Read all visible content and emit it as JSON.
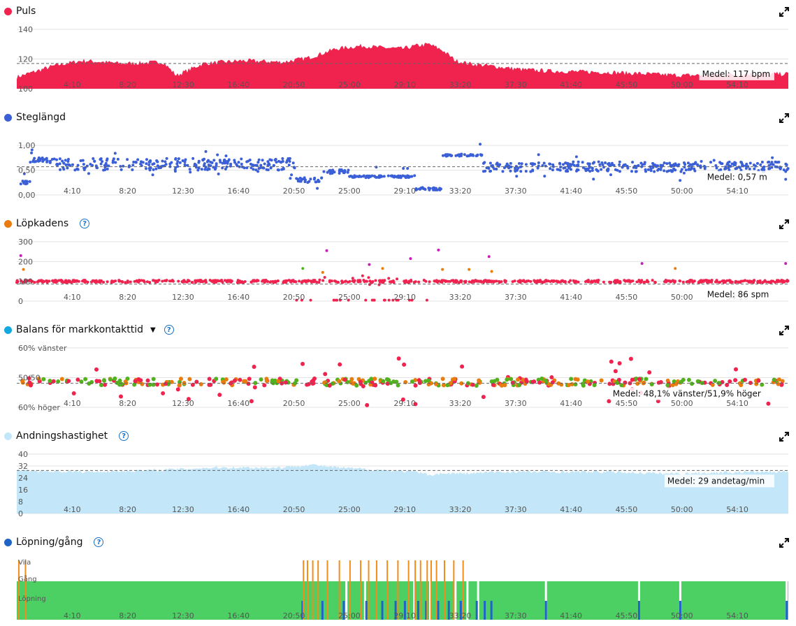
{
  "x_ticks": [
    "4:10",
    "8:20",
    "12:30",
    "16:40",
    "20:50",
    "25:00",
    "29:10",
    "33:20",
    "37:30",
    "41:40",
    "45:50",
    "50:00",
    "54:10"
  ],
  "chart_data": [
    {
      "id": "puls",
      "type": "area",
      "title": "Puls",
      "color": "#f0234f",
      "ylim": [
        100,
        140
      ],
      "yticks": [
        100,
        120,
        140
      ],
      "ytick_labels": [
        "100",
        "120",
        "140"
      ],
      "x_unit": "min",
      "x_range": [
        0,
        58
      ],
      "x": [
        0,
        3,
        5,
        8,
        11,
        12,
        14,
        17,
        20,
        22,
        24,
        26,
        27,
        29,
        30,
        31,
        32,
        33,
        34,
        36,
        38,
        40,
        45,
        50,
        55,
        58
      ],
      "y": [
        108,
        116,
        119,
        117,
        118,
        109,
        117,
        119,
        118,
        121,
        127,
        129,
        128,
        127,
        129,
        130,
        126,
        119,
        117,
        115,
        113,
        112,
        111,
        109,
        110,
        110
      ],
      "mean": 117,
      "mean_label": "Medel: 117 bpm"
    },
    {
      "id": "steglangd",
      "type": "scatter",
      "title": "Steglängd",
      "color": "#3b5fd6",
      "ylim": [
        0,
        1.2
      ],
      "yticks": [
        0,
        0.5,
        1.0
      ],
      "ytick_labels": [
        "0,00",
        "0,50",
        "1,00"
      ],
      "x_unit": "min",
      "x_range": [
        0,
        58
      ],
      "segments": [
        {
          "x0": 0,
          "x1": 1,
          "y": 0.25,
          "spread": 0.03
        },
        {
          "x0": 1,
          "x1": 3,
          "y": 0.7,
          "spread": 0.05
        },
        {
          "x0": 3,
          "x1": 21,
          "y": 0.62,
          "spread": 0.12
        },
        {
          "x0": 21,
          "x1": 23,
          "y": 0.3,
          "spread": 0.05
        },
        {
          "x0": 23,
          "x1": 25,
          "y": 0.47,
          "spread": 0.04
        },
        {
          "x0": 25,
          "x1": 30,
          "y": 0.37,
          "spread": 0.02
        },
        {
          "x0": 30,
          "x1": 32,
          "y": 0.12,
          "spread": 0.03
        },
        {
          "x0": 32,
          "x1": 35,
          "y": 0.8,
          "spread": 0.02
        },
        {
          "x0": 35,
          "x1": 58,
          "y": 0.57,
          "spread": 0.1
        }
      ],
      "mean": 0.57,
      "mean_label": "Medel: 0,57 m"
    },
    {
      "id": "lopkadens",
      "type": "scatter",
      "title": "Löpkadens",
      "color": "#f0234f",
      "ylim": [
        0,
        300
      ],
      "yticks": [
        0,
        100,
        200,
        300
      ],
      "ytick_labels": [
        "0",
        "100",
        "200",
        "300"
      ],
      "x_unit": "min",
      "x_range": [
        0,
        58
      ],
      "baseline": 100,
      "spread": 6,
      "low_zone": [
        21,
        31
      ],
      "outliers": [
        {
          "x": 0.3,
          "y": 230,
          "c": "#c71fb5"
        },
        {
          "x": 0.5,
          "y": 160,
          "c": "#e87d0e"
        },
        {
          "x": 21.5,
          "y": 165,
          "c": "#52b11e"
        },
        {
          "x": 23,
          "y": 145,
          "c": "#e87d0e"
        },
        {
          "x": 23.3,
          "y": 255,
          "c": "#c71fb5"
        },
        {
          "x": 26.5,
          "y": 185,
          "c": "#c71fb5"
        },
        {
          "x": 27.5,
          "y": 165,
          "c": "#e87d0e"
        },
        {
          "x": 29.6,
          "y": 215,
          "c": "#c71fb5"
        },
        {
          "x": 31.7,
          "y": 258,
          "c": "#c71fb5"
        },
        {
          "x": 32,
          "y": 160,
          "c": "#e87d0e"
        },
        {
          "x": 34,
          "y": 160,
          "c": "#e87d0e"
        },
        {
          "x": 35.5,
          "y": 225,
          "c": "#c71fb5"
        },
        {
          "x": 35.7,
          "y": 150,
          "c": "#e87d0e"
        },
        {
          "x": 47,
          "y": 190,
          "c": "#c71fb5"
        },
        {
          "x": 49.5,
          "y": 165,
          "c": "#e87d0e"
        },
        {
          "x": 57.8,
          "y": 190,
          "c": "#c71fb5"
        }
      ],
      "mean": 86,
      "mean_label": "Medel: 86 spm"
    },
    {
      "id": "balans",
      "type": "scatter",
      "title": "Balans för markkontakttid",
      "color": "#12a8e0",
      "ylim": [
        40,
        60
      ],
      "ytick_labels": [
        "60% vänster",
        "50/50",
        "60% höger"
      ],
      "yticks": [
        60,
        50,
        40
      ],
      "x_unit": "min",
      "x_range": [
        0,
        58
      ],
      "center": 48.5,
      "spread": 1.2,
      "colors": [
        "#f0234f",
        "#e87d0e",
        "#52b11e"
      ],
      "mean": 48.1,
      "mean_label": "Medel: 48,1% vänster/51,9% höger"
    },
    {
      "id": "andning",
      "type": "area",
      "title": "Andningshastighet",
      "color": "#c3e7f8",
      "ylim": [
        0,
        40
      ],
      "yticks": [
        0,
        8,
        16,
        24,
        32,
        40
      ],
      "ytick_labels": [
        "0",
        "8",
        "16",
        "24",
        "32",
        "40"
      ],
      "x_unit": "min",
      "x_range": [
        0,
        58
      ],
      "x": [
        0,
        5,
        10,
        15,
        20,
        22,
        24,
        26,
        28,
        30,
        31,
        32,
        34,
        36,
        40,
        45,
        48,
        50,
        55,
        58
      ],
      "y": [
        29,
        28,
        29,
        31,
        31,
        33,
        31,
        30,
        29,
        28,
        26,
        27,
        27,
        28,
        28,
        28,
        27,
        27,
        28,
        28
      ],
      "mean": 29,
      "mean_label": "Medel: 29 andetag/min"
    },
    {
      "id": "lopning",
      "type": "heatmap",
      "title": "Löpning/gång",
      "color": "#1f63c6",
      "categories": [
        "Vila",
        "Gång",
        "Löpning"
      ],
      "category_colors": {
        "Vila": "#f28c1c",
        "Gång": "#4ccf63",
        "Löpning": "#1f63c6"
      },
      "x_unit": "min",
      "x_range": [
        0,
        58
      ],
      "dominant": "Gång",
      "spikes": [
        0.1,
        0.6,
        21.5,
        21.8,
        22.2,
        22.6,
        23.3,
        24.2,
        25.0,
        25.8,
        26.4,
        27.0,
        27.8,
        28.6,
        29.4,
        29.9,
        30.3,
        30.8,
        31.1,
        31.5,
        32.1,
        32.8,
        33.5
      ],
      "run_marks": [
        21.4,
        22.9,
        24.5,
        26.2,
        27.4,
        28.4,
        29.1,
        30.1,
        30.7,
        31.6,
        32.4,
        33.3,
        34.5,
        35.1,
        35.6,
        39.7,
        46.7,
        49.8,
        57.8
      ],
      "gaps": [
        24.7,
        26.1,
        29.8,
        31.0,
        32.9,
        33.8,
        34.6,
        39.7,
        46.7,
        49.8,
        57.8
      ]
    }
  ]
}
